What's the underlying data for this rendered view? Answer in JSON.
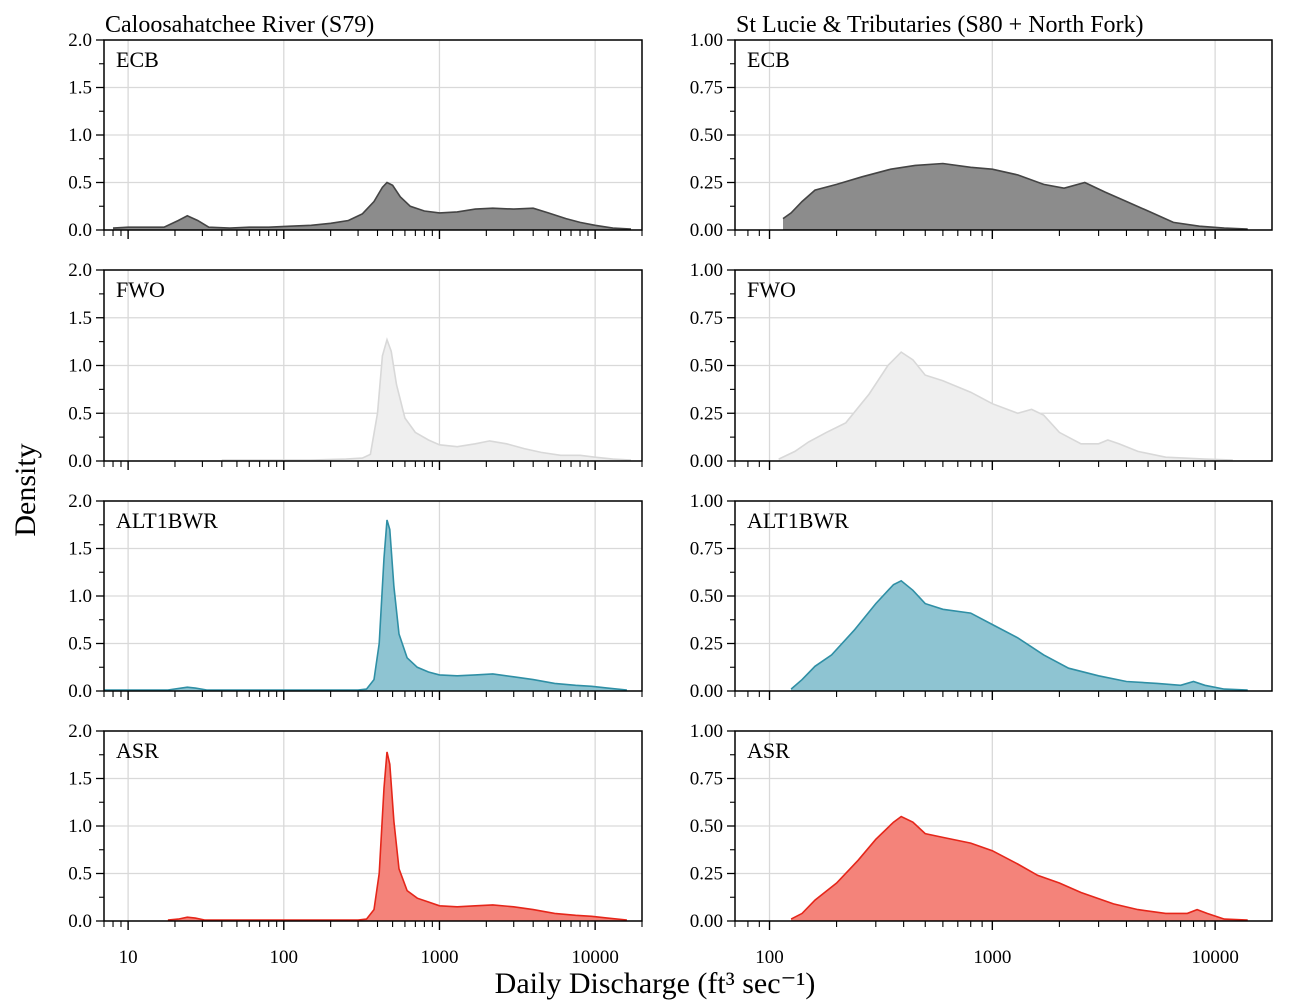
{
  "figure": {
    "ylabel": "Density",
    "xlabel": "Daily Discharge (ft³ sec⁻¹)"
  },
  "colors": {
    "ECB": "#8c8c8c",
    "FWO": "#efefef",
    "ALT1BWR": "#8ec4d2",
    "ASR": "#f4837a",
    "ECB_line": "#444444",
    "FWO_line": "#d8d8d8",
    "ALT1BWR_line": "#2f8fa5",
    "ASR_line": "#e5261a"
  },
  "chart_data": [
    {
      "type": "area",
      "title": "Caloosahatchee River (S79)",
      "x_scale": "log",
      "xlim": [
        7,
        20000
      ],
      "x_ticks": [
        10,
        100,
        1000,
        10000
      ],
      "x_tick_labels": [
        "10",
        "100",
        "1000",
        "10000"
      ],
      "ylim": [
        0,
        2.0
      ],
      "y_ticks": [
        0,
        0.5,
        1.0,
        1.5,
        2.0
      ],
      "y_tick_labels": [
        "0.0",
        "0.5",
        "1.0",
        "1.5",
        "2.0"
      ],
      "grid": true,
      "panels": [
        {
          "label": "ECB",
          "points": [
            [
              8,
              0.02
            ],
            [
              10,
              0.03
            ],
            [
              13,
              0.03
            ],
            [
              17,
              0.03
            ],
            [
              21,
              0.1
            ],
            [
              24,
              0.15
            ],
            [
              28,
              0.1
            ],
            [
              33,
              0.03
            ],
            [
              45,
              0.02
            ],
            [
              60,
              0.03
            ],
            [
              80,
              0.03
            ],
            [
              110,
              0.04
            ],
            [
              150,
              0.05
            ],
            [
              200,
              0.07
            ],
            [
              260,
              0.1
            ],
            [
              320,
              0.17
            ],
            [
              380,
              0.3
            ],
            [
              430,
              0.45
            ],
            [
              460,
              0.5
            ],
            [
              500,
              0.47
            ],
            [
              560,
              0.35
            ],
            [
              650,
              0.25
            ],
            [
              800,
              0.2
            ],
            [
              1000,
              0.18
            ],
            [
              1300,
              0.19
            ],
            [
              1700,
              0.22
            ],
            [
              2200,
              0.23
            ],
            [
              3000,
              0.22
            ],
            [
              4000,
              0.23
            ],
            [
              5000,
              0.18
            ],
            [
              6500,
              0.12
            ],
            [
              8000,
              0.08
            ],
            [
              10000,
              0.05
            ],
            [
              13000,
              0.02
            ],
            [
              17000,
              0.01
            ]
          ]
        },
        {
          "label": "FWO",
          "points": [
            [
              40,
              0.01
            ],
            [
              80,
              0.01
            ],
            [
              150,
              0.01
            ],
            [
              250,
              0.02
            ],
            [
              320,
              0.03
            ],
            [
              360,
              0.07
            ],
            [
              400,
              0.5
            ],
            [
              430,
              1.1
            ],
            [
              460,
              1.27
            ],
            [
              490,
              1.15
            ],
            [
              530,
              0.8
            ],
            [
              600,
              0.45
            ],
            [
              700,
              0.3
            ],
            [
              850,
              0.22
            ],
            [
              1000,
              0.17
            ],
            [
              1300,
              0.15
            ],
            [
              1700,
              0.18
            ],
            [
              2100,
              0.21
            ],
            [
              2700,
              0.18
            ],
            [
              3500,
              0.13
            ],
            [
              4500,
              0.09
            ],
            [
              6000,
              0.06
            ],
            [
              8000,
              0.06
            ],
            [
              10000,
              0.04
            ],
            [
              13000,
              0.02
            ],
            [
              17000,
              0.01
            ]
          ]
        },
        {
          "label": "ALT1BWR",
          "points": [
            [
              7,
              0.01
            ],
            [
              12,
              0.01
            ],
            [
              18,
              0.01
            ],
            [
              22,
              0.03
            ],
            [
              24,
              0.04
            ],
            [
              27,
              0.03
            ],
            [
              32,
              0.01
            ],
            [
              50,
              0.01
            ],
            [
              100,
              0.01
            ],
            [
              200,
              0.01
            ],
            [
              300,
              0.01
            ],
            [
              340,
              0.02
            ],
            [
              380,
              0.12
            ],
            [
              410,
              0.5
            ],
            [
              440,
              1.4
            ],
            [
              460,
              1.8
            ],
            [
              480,
              1.7
            ],
            [
              510,
              1.1
            ],
            [
              550,
              0.6
            ],
            [
              620,
              0.35
            ],
            [
              720,
              0.25
            ],
            [
              850,
              0.2
            ],
            [
              1000,
              0.17
            ],
            [
              1300,
              0.16
            ],
            [
              1700,
              0.17
            ],
            [
              2200,
              0.18
            ],
            [
              3000,
              0.15
            ],
            [
              4000,
              0.12
            ],
            [
              5500,
              0.08
            ],
            [
              7500,
              0.06
            ],
            [
              9500,
              0.05
            ],
            [
              12000,
              0.03
            ],
            [
              16000,
              0.01
            ]
          ]
        },
        {
          "label": "ASR",
          "points": [
            [
              18,
              0.01
            ],
            [
              21,
              0.02
            ],
            [
              24,
              0.04
            ],
            [
              27,
              0.03
            ],
            [
              31,
              0.01
            ],
            [
              50,
              0.01
            ],
            [
              100,
              0.01
            ],
            [
              200,
              0.01
            ],
            [
              300,
              0.01
            ],
            [
              340,
              0.02
            ],
            [
              380,
              0.12
            ],
            [
              410,
              0.5
            ],
            [
              440,
              1.4
            ],
            [
              460,
              1.78
            ],
            [
              480,
              1.65
            ],
            [
              510,
              1.05
            ],
            [
              550,
              0.55
            ],
            [
              620,
              0.32
            ],
            [
              720,
              0.24
            ],
            [
              850,
              0.2
            ],
            [
              1000,
              0.16
            ],
            [
              1300,
              0.15
            ],
            [
              1700,
              0.16
            ],
            [
              2200,
              0.17
            ],
            [
              3000,
              0.15
            ],
            [
              4000,
              0.12
            ],
            [
              5500,
              0.08
            ],
            [
              7500,
              0.06
            ],
            [
              9500,
              0.05
            ],
            [
              12000,
              0.03
            ],
            [
              16000,
              0.01
            ]
          ]
        }
      ]
    },
    {
      "type": "area",
      "title": "St Lucie & Tributaries (S80 + North Fork)",
      "x_scale": "log",
      "xlim": [
        70,
        18000
      ],
      "x_ticks": [
        100,
        1000,
        10000
      ],
      "x_tick_labels": [
        "100",
        "1000",
        "10000"
      ],
      "ylim": [
        0,
        1.0
      ],
      "y_ticks": [
        0,
        0.25,
        0.5,
        0.75,
        1.0
      ],
      "y_tick_labels": [
        "0.00",
        "0.25",
        "0.50",
        "0.75",
        "1.00"
      ],
      "grid": true,
      "panels": [
        {
          "label": "ECB",
          "points": [
            [
              115,
              0.06
            ],
            [
              125,
              0.09
            ],
            [
              140,
              0.15
            ],
            [
              160,
              0.21
            ],
            [
              200,
              0.24
            ],
            [
              260,
              0.28
            ],
            [
              350,
              0.32
            ],
            [
              450,
              0.34
            ],
            [
              600,
              0.35
            ],
            [
              800,
              0.33
            ],
            [
              1000,
              0.32
            ],
            [
              1300,
              0.29
            ],
            [
              1700,
              0.24
            ],
            [
              2100,
              0.22
            ],
            [
              2600,
              0.25
            ],
            [
              3200,
              0.2
            ],
            [
              4000,
              0.15
            ],
            [
              5000,
              0.1
            ],
            [
              6500,
              0.04
            ],
            [
              8500,
              0.02
            ],
            [
              11000,
              0.01
            ],
            [
              14000,
              0.005
            ]
          ]
        },
        {
          "label": "FWO",
          "points": [
            [
              110,
              0.01
            ],
            [
              130,
              0.05
            ],
            [
              150,
              0.1
            ],
            [
              180,
              0.15
            ],
            [
              220,
              0.2
            ],
            [
              280,
              0.35
            ],
            [
              340,
              0.5
            ],
            [
              390,
              0.57
            ],
            [
              440,
              0.53
            ],
            [
              500,
              0.45
            ],
            [
              600,
              0.42
            ],
            [
              800,
              0.36
            ],
            [
              1000,
              0.3
            ],
            [
              1300,
              0.25
            ],
            [
              1500,
              0.27
            ],
            [
              1700,
              0.24
            ],
            [
              2000,
              0.15
            ],
            [
              2500,
              0.09
            ],
            [
              3000,
              0.09
            ],
            [
              3300,
              0.11
            ],
            [
              3700,
              0.09
            ],
            [
              4500,
              0.05
            ],
            [
              6000,
              0.02
            ],
            [
              9000,
              0.01
            ],
            [
              12000,
              0.005
            ]
          ]
        },
        {
          "label": "ALT1BWR",
          "points": [
            [
              125,
              0.01
            ],
            [
              140,
              0.06
            ],
            [
              160,
              0.13
            ],
            [
              190,
              0.19
            ],
            [
              240,
              0.32
            ],
            [
              300,
              0.46
            ],
            [
              360,
              0.56
            ],
            [
              390,
              0.58
            ],
            [
              440,
              0.53
            ],
            [
              500,
              0.46
            ],
            [
              600,
              0.43
            ],
            [
              800,
              0.41
            ],
            [
              1000,
              0.35
            ],
            [
              1300,
              0.28
            ],
            [
              1700,
              0.19
            ],
            [
              2200,
              0.12
            ],
            [
              3000,
              0.08
            ],
            [
              4000,
              0.05
            ],
            [
              5500,
              0.04
            ],
            [
              7000,
              0.03
            ],
            [
              8000,
              0.05
            ],
            [
              9000,
              0.03
            ],
            [
              11000,
              0.01
            ],
            [
              14000,
              0.005
            ]
          ]
        },
        {
          "label": "ASR",
          "points": [
            [
              125,
              0.01
            ],
            [
              140,
              0.04
            ],
            [
              160,
              0.11
            ],
            [
              200,
              0.2
            ],
            [
              250,
              0.32
            ],
            [
              300,
              0.43
            ],
            [
              360,
              0.52
            ],
            [
              390,
              0.55
            ],
            [
              440,
              0.52
            ],
            [
              500,
              0.46
            ],
            [
              600,
              0.44
            ],
            [
              800,
              0.41
            ],
            [
              1000,
              0.37
            ],
            [
              1300,
              0.3
            ],
            [
              1600,
              0.24
            ],
            [
              2000,
              0.2
            ],
            [
              2500,
              0.15
            ],
            [
              3500,
              0.09
            ],
            [
              4500,
              0.06
            ],
            [
              6000,
              0.04
            ],
            [
              7500,
              0.04
            ],
            [
              8300,
              0.06
            ],
            [
              9200,
              0.04
            ],
            [
              11000,
              0.01
            ],
            [
              14000,
              0.005
            ]
          ]
        }
      ]
    }
  ]
}
